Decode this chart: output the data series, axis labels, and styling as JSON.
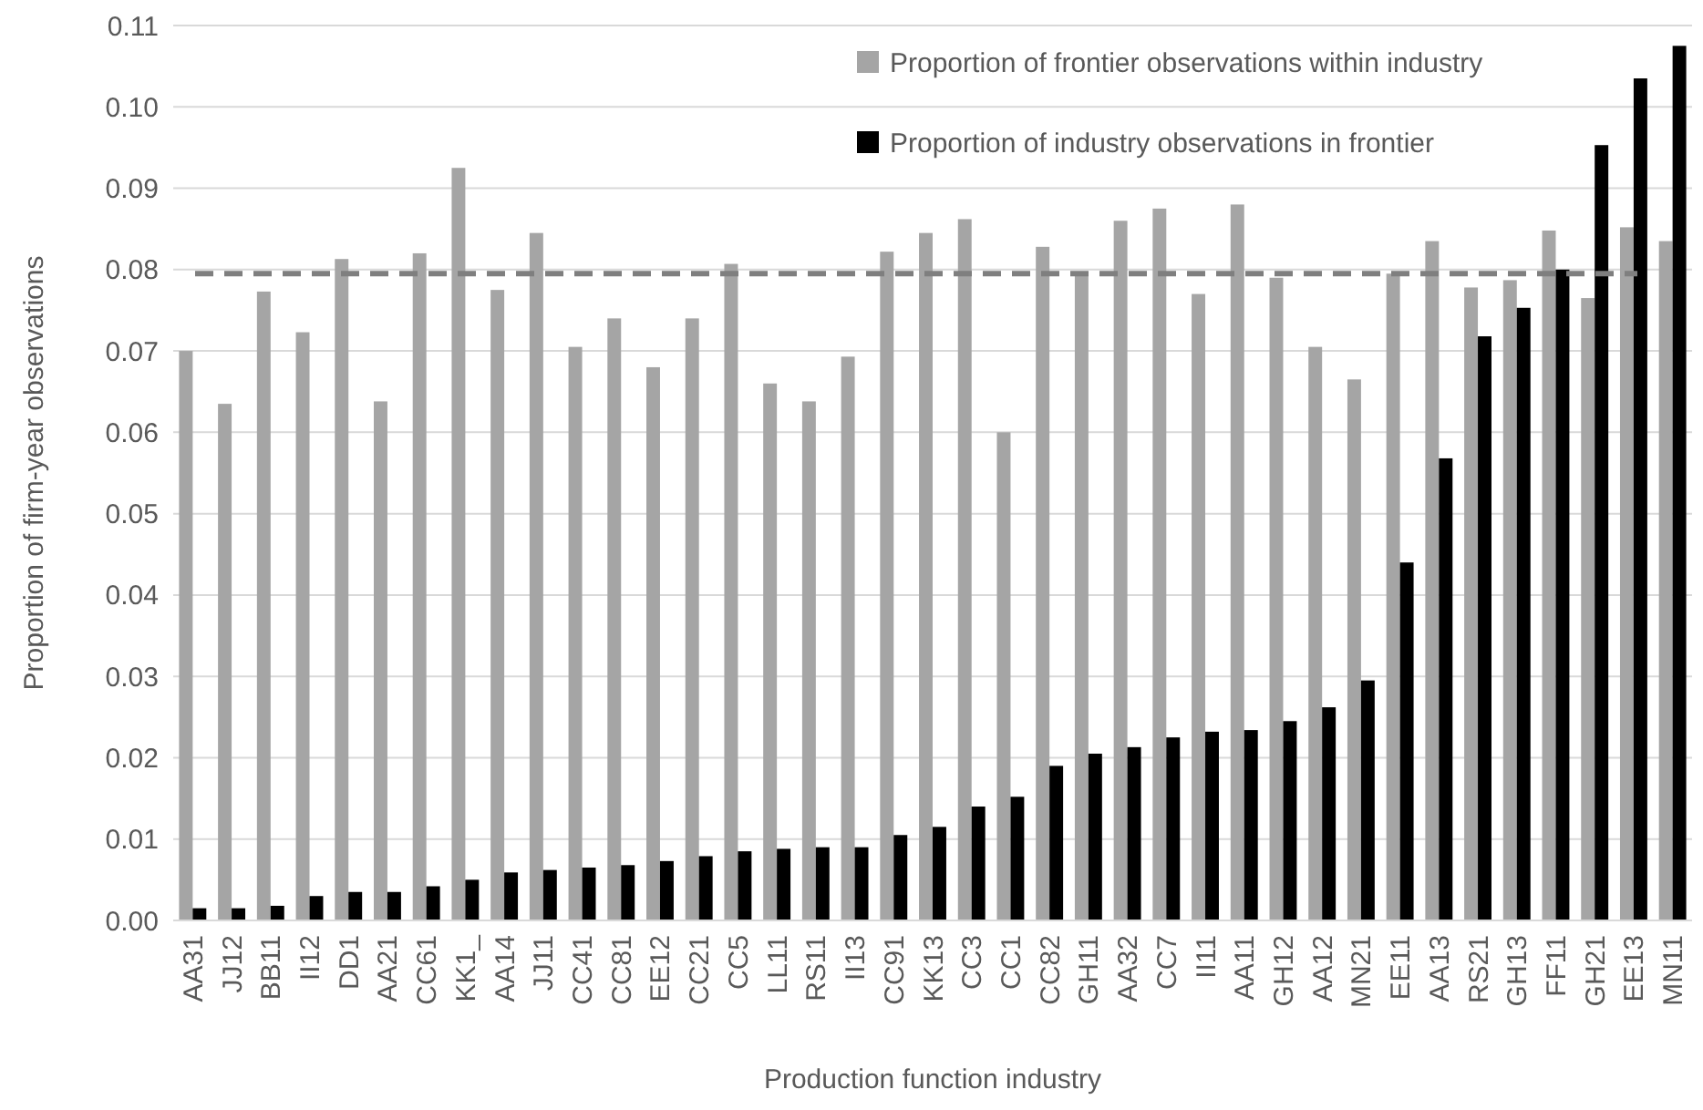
{
  "chart_data": {
    "type": "bar",
    "xlabel": "Production function industry",
    "ylabel": "Proportion of firm-year observations",
    "categories": [
      "AA31",
      "JJ12",
      "BB11",
      "II12",
      "DD1",
      "AA21",
      "CC61",
      "KK1_",
      "AA14",
      "JJ11",
      "CC41",
      "CC81",
      "EE12",
      "CC21",
      "CC5",
      "LL11",
      "RS11",
      "II13",
      "CC91",
      "KK13",
      "CC3",
      "CC1",
      "CC82",
      "GH11",
      "AA32",
      "CC7",
      "II11",
      "AA11",
      "GH12",
      "AA12",
      "MN21",
      "EE11",
      "AA13",
      "RS21",
      "GH13",
      "FF11",
      "GH21",
      "EE13",
      "MN11"
    ],
    "series": [
      {
        "name": "Proportion of frontier observations within industry",
        "color": "#a5a5a5",
        "values": [
          0.07,
          0.0635,
          0.0773,
          0.0723,
          0.0813,
          0.0638,
          0.082,
          0.0925,
          0.0775,
          0.0845,
          0.0705,
          0.074,
          0.068,
          0.074,
          0.0807,
          0.066,
          0.0638,
          0.0693,
          0.0822,
          0.0845,
          0.0862,
          0.06,
          0.0828,
          0.0795,
          0.086,
          0.0875,
          0.077,
          0.088,
          0.079,
          0.0705,
          0.0665,
          0.0795,
          0.0835,
          0.0778,
          0.0787,
          0.0848,
          0.0765,
          0.0852,
          0.0835
        ]
      },
      {
        "name": "Proportion of industry observations in frontier",
        "color": "#000000",
        "values": [
          0.0015,
          0.0015,
          0.0018,
          0.003,
          0.0035,
          0.0035,
          0.0042,
          0.005,
          0.0059,
          0.0062,
          0.0065,
          0.0068,
          0.0073,
          0.0079,
          0.0085,
          0.0088,
          0.009,
          0.009,
          0.0105,
          0.0115,
          0.014,
          0.0152,
          0.019,
          0.0205,
          0.0213,
          0.0225,
          0.0232,
          0.0234,
          0.0245,
          0.0262,
          0.0295,
          0.044,
          0.0568,
          0.0718,
          0.0753,
          0.08,
          0.0953,
          0.1035,
          0.1075
        ]
      }
    ],
    "ylim": [
      0,
      0.11
    ],
    "yticks": [
      {
        "value": 0,
        "label": "0.00"
      },
      {
        "value": 0.01,
        "label": "0.01"
      },
      {
        "value": 0.02,
        "label": "0.02"
      },
      {
        "value": 0.03,
        "label": "0.03"
      },
      {
        "value": 0.04,
        "label": "0.04"
      },
      {
        "value": 0.05,
        "label": "0.05"
      },
      {
        "value": 0.06,
        "label": "0.06"
      },
      {
        "value": 0.07,
        "label": "0.07"
      },
      {
        "value": 0.08,
        "label": "0.08"
      },
      {
        "value": 0.09,
        "label": "0.09"
      },
      {
        "value": 0.1,
        "label": "0.10"
      },
      {
        "value": 0.11,
        "label": "0.11"
      }
    ],
    "grid": "y",
    "legend": "top right",
    "ref_lines": [
      {
        "axis": "y",
        "value": 0.0795,
        "color": "#7f7f7f",
        "line_style": "dashed"
      }
    ]
  }
}
